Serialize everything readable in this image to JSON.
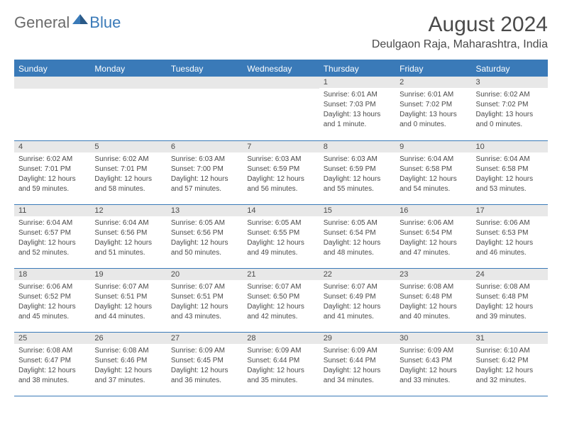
{
  "logo": {
    "text_general": "General",
    "text_blue": "Blue",
    "icon_color": "#3a7ab8"
  },
  "header": {
    "month_title": "August 2024",
    "location": "Deulgaon Raja, Maharashtra, India"
  },
  "colors": {
    "header_bg": "#3a7ab8",
    "header_text": "#ffffff",
    "number_bg": "#e8e8e8",
    "text": "#4a4a4a",
    "border": "#3a7ab8"
  },
  "day_names": [
    "Sunday",
    "Monday",
    "Tuesday",
    "Wednesday",
    "Thursday",
    "Friday",
    "Saturday"
  ],
  "weeks": [
    [
      null,
      null,
      null,
      null,
      {
        "num": "1",
        "sunrise": "Sunrise: 6:01 AM",
        "sunset": "Sunset: 7:03 PM",
        "daylight1": "Daylight: 13 hours",
        "daylight2": "and 1 minute."
      },
      {
        "num": "2",
        "sunrise": "Sunrise: 6:01 AM",
        "sunset": "Sunset: 7:02 PM",
        "daylight1": "Daylight: 13 hours",
        "daylight2": "and 0 minutes."
      },
      {
        "num": "3",
        "sunrise": "Sunrise: 6:02 AM",
        "sunset": "Sunset: 7:02 PM",
        "daylight1": "Daylight: 13 hours",
        "daylight2": "and 0 minutes."
      }
    ],
    [
      {
        "num": "4",
        "sunrise": "Sunrise: 6:02 AM",
        "sunset": "Sunset: 7:01 PM",
        "daylight1": "Daylight: 12 hours",
        "daylight2": "and 59 minutes."
      },
      {
        "num": "5",
        "sunrise": "Sunrise: 6:02 AM",
        "sunset": "Sunset: 7:01 PM",
        "daylight1": "Daylight: 12 hours",
        "daylight2": "and 58 minutes."
      },
      {
        "num": "6",
        "sunrise": "Sunrise: 6:03 AM",
        "sunset": "Sunset: 7:00 PM",
        "daylight1": "Daylight: 12 hours",
        "daylight2": "and 57 minutes."
      },
      {
        "num": "7",
        "sunrise": "Sunrise: 6:03 AM",
        "sunset": "Sunset: 6:59 PM",
        "daylight1": "Daylight: 12 hours",
        "daylight2": "and 56 minutes."
      },
      {
        "num": "8",
        "sunrise": "Sunrise: 6:03 AM",
        "sunset": "Sunset: 6:59 PM",
        "daylight1": "Daylight: 12 hours",
        "daylight2": "and 55 minutes."
      },
      {
        "num": "9",
        "sunrise": "Sunrise: 6:04 AM",
        "sunset": "Sunset: 6:58 PM",
        "daylight1": "Daylight: 12 hours",
        "daylight2": "and 54 minutes."
      },
      {
        "num": "10",
        "sunrise": "Sunrise: 6:04 AM",
        "sunset": "Sunset: 6:58 PM",
        "daylight1": "Daylight: 12 hours",
        "daylight2": "and 53 minutes."
      }
    ],
    [
      {
        "num": "11",
        "sunrise": "Sunrise: 6:04 AM",
        "sunset": "Sunset: 6:57 PM",
        "daylight1": "Daylight: 12 hours",
        "daylight2": "and 52 minutes."
      },
      {
        "num": "12",
        "sunrise": "Sunrise: 6:04 AM",
        "sunset": "Sunset: 6:56 PM",
        "daylight1": "Daylight: 12 hours",
        "daylight2": "and 51 minutes."
      },
      {
        "num": "13",
        "sunrise": "Sunrise: 6:05 AM",
        "sunset": "Sunset: 6:56 PM",
        "daylight1": "Daylight: 12 hours",
        "daylight2": "and 50 minutes."
      },
      {
        "num": "14",
        "sunrise": "Sunrise: 6:05 AM",
        "sunset": "Sunset: 6:55 PM",
        "daylight1": "Daylight: 12 hours",
        "daylight2": "and 49 minutes."
      },
      {
        "num": "15",
        "sunrise": "Sunrise: 6:05 AM",
        "sunset": "Sunset: 6:54 PM",
        "daylight1": "Daylight: 12 hours",
        "daylight2": "and 48 minutes."
      },
      {
        "num": "16",
        "sunrise": "Sunrise: 6:06 AM",
        "sunset": "Sunset: 6:54 PM",
        "daylight1": "Daylight: 12 hours",
        "daylight2": "and 47 minutes."
      },
      {
        "num": "17",
        "sunrise": "Sunrise: 6:06 AM",
        "sunset": "Sunset: 6:53 PM",
        "daylight1": "Daylight: 12 hours",
        "daylight2": "and 46 minutes."
      }
    ],
    [
      {
        "num": "18",
        "sunrise": "Sunrise: 6:06 AM",
        "sunset": "Sunset: 6:52 PM",
        "daylight1": "Daylight: 12 hours",
        "daylight2": "and 45 minutes."
      },
      {
        "num": "19",
        "sunrise": "Sunrise: 6:07 AM",
        "sunset": "Sunset: 6:51 PM",
        "daylight1": "Daylight: 12 hours",
        "daylight2": "and 44 minutes."
      },
      {
        "num": "20",
        "sunrise": "Sunrise: 6:07 AM",
        "sunset": "Sunset: 6:51 PM",
        "daylight1": "Daylight: 12 hours",
        "daylight2": "and 43 minutes."
      },
      {
        "num": "21",
        "sunrise": "Sunrise: 6:07 AM",
        "sunset": "Sunset: 6:50 PM",
        "daylight1": "Daylight: 12 hours",
        "daylight2": "and 42 minutes."
      },
      {
        "num": "22",
        "sunrise": "Sunrise: 6:07 AM",
        "sunset": "Sunset: 6:49 PM",
        "daylight1": "Daylight: 12 hours",
        "daylight2": "and 41 minutes."
      },
      {
        "num": "23",
        "sunrise": "Sunrise: 6:08 AM",
        "sunset": "Sunset: 6:48 PM",
        "daylight1": "Daylight: 12 hours",
        "daylight2": "and 40 minutes."
      },
      {
        "num": "24",
        "sunrise": "Sunrise: 6:08 AM",
        "sunset": "Sunset: 6:48 PM",
        "daylight1": "Daylight: 12 hours",
        "daylight2": "and 39 minutes."
      }
    ],
    [
      {
        "num": "25",
        "sunrise": "Sunrise: 6:08 AM",
        "sunset": "Sunset: 6:47 PM",
        "daylight1": "Daylight: 12 hours",
        "daylight2": "and 38 minutes."
      },
      {
        "num": "26",
        "sunrise": "Sunrise: 6:08 AM",
        "sunset": "Sunset: 6:46 PM",
        "daylight1": "Daylight: 12 hours",
        "daylight2": "and 37 minutes."
      },
      {
        "num": "27",
        "sunrise": "Sunrise: 6:09 AM",
        "sunset": "Sunset: 6:45 PM",
        "daylight1": "Daylight: 12 hours",
        "daylight2": "and 36 minutes."
      },
      {
        "num": "28",
        "sunrise": "Sunrise: 6:09 AM",
        "sunset": "Sunset: 6:44 PM",
        "daylight1": "Daylight: 12 hours",
        "daylight2": "and 35 minutes."
      },
      {
        "num": "29",
        "sunrise": "Sunrise: 6:09 AM",
        "sunset": "Sunset: 6:44 PM",
        "daylight1": "Daylight: 12 hours",
        "daylight2": "and 34 minutes."
      },
      {
        "num": "30",
        "sunrise": "Sunrise: 6:09 AM",
        "sunset": "Sunset: 6:43 PM",
        "daylight1": "Daylight: 12 hours",
        "daylight2": "and 33 minutes."
      },
      {
        "num": "31",
        "sunrise": "Sunrise: 6:10 AM",
        "sunset": "Sunset: 6:42 PM",
        "daylight1": "Daylight: 12 hours",
        "daylight2": "and 32 minutes."
      }
    ]
  ]
}
